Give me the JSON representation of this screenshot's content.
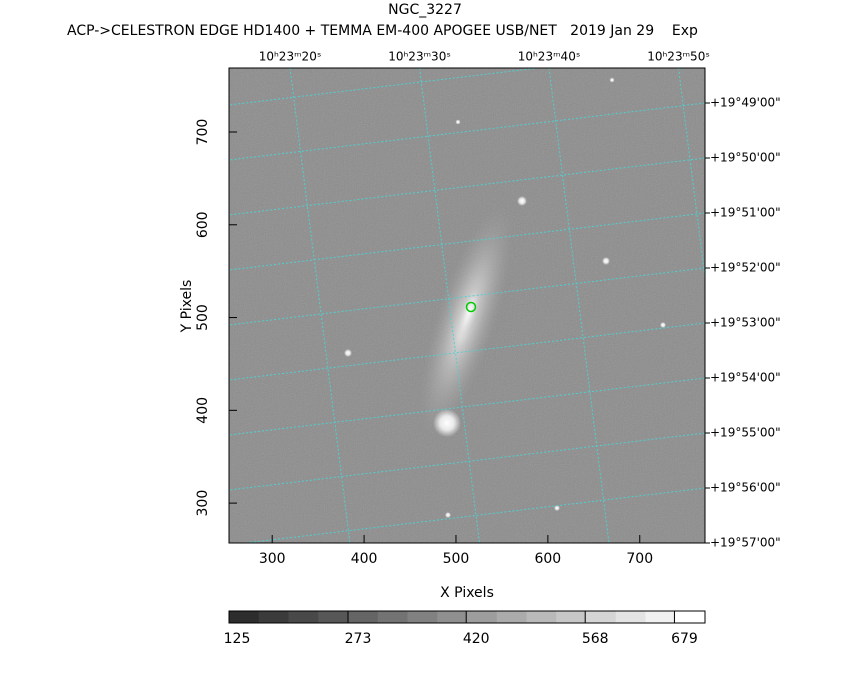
{
  "chart_data": {
    "type": "image",
    "title": "NGC_3227",
    "subtitle": "ACP->CELESTRON EDGE HD1400 + TEMMA EM-400 APOGEE USB/NET   2019 Jan 29    Exp",
    "x_label": "X Pixels",
    "y_label": "Y Pixels",
    "xlim": [
      253,
      771
    ],
    "ylim": [
      257,
      769
    ],
    "xticks": [
      300,
      400,
      500,
      600,
      700
    ],
    "yticks": [
      300,
      400,
      500,
      600,
      700
    ],
    "ra_ticks": [
      "10ʰ23ᵐ20ˢ",
      "10ʰ23ᵐ30ˢ",
      "10ʰ23ᵐ40ˢ",
      "10ʰ23ᵐ50ˢ"
    ],
    "dec_ticks": [
      "+19°49'00\"",
      "+19°50'00\"",
      "+19°51'00\"",
      "+19°52'00\"",
      "+19°53'00\"",
      "+19°54'00\"",
      "+19°55'00\"",
      "+19°56'00\"",
      "+19°57'00\""
    ],
    "clim": [
      125,
      717
    ],
    "cticks": [
      125,
      273,
      420,
      568,
      679
    ]
  }
}
